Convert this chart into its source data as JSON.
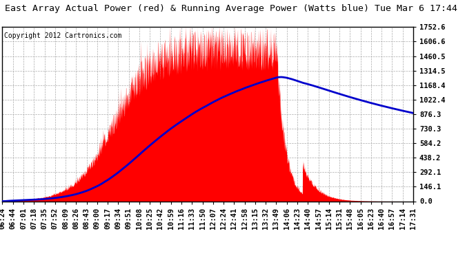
{
  "title": "East Array Actual Power (red) & Running Average Power (Watts blue) Tue Mar 6 17:44",
  "copyright": "Copyright 2012 Cartronics.com",
  "background_color": "#ffffff",
  "plot_bg_color": "#ffffff",
  "y_ticks": [
    0.0,
    146.1,
    292.1,
    438.2,
    584.2,
    730.3,
    876.3,
    1022.4,
    1168.4,
    1314.5,
    1460.5,
    1606.6,
    1752.6
  ],
  "y_max": 1752.6,
  "x_labels": [
    "06:24",
    "06:44",
    "07:01",
    "07:18",
    "07:35",
    "07:52",
    "08:09",
    "08:26",
    "08:43",
    "09:00",
    "09:17",
    "09:34",
    "09:51",
    "10:08",
    "10:25",
    "10:42",
    "10:59",
    "11:16",
    "11:33",
    "11:50",
    "12:07",
    "12:24",
    "12:41",
    "12:58",
    "13:15",
    "13:32",
    "13:49",
    "14:06",
    "14:23",
    "14:40",
    "14:57",
    "15:14",
    "15:31",
    "15:48",
    "16:05",
    "16:23",
    "16:40",
    "16:57",
    "17:14",
    "17:31"
  ],
  "actual_color": "#ff0000",
  "avg_color": "#0000cc",
  "grid_color": "#aaaaaa",
  "title_fontsize": 9.5,
  "copyright_fontsize": 7,
  "tick_fontsize": 7.5,
  "grid_linestyle": "--"
}
